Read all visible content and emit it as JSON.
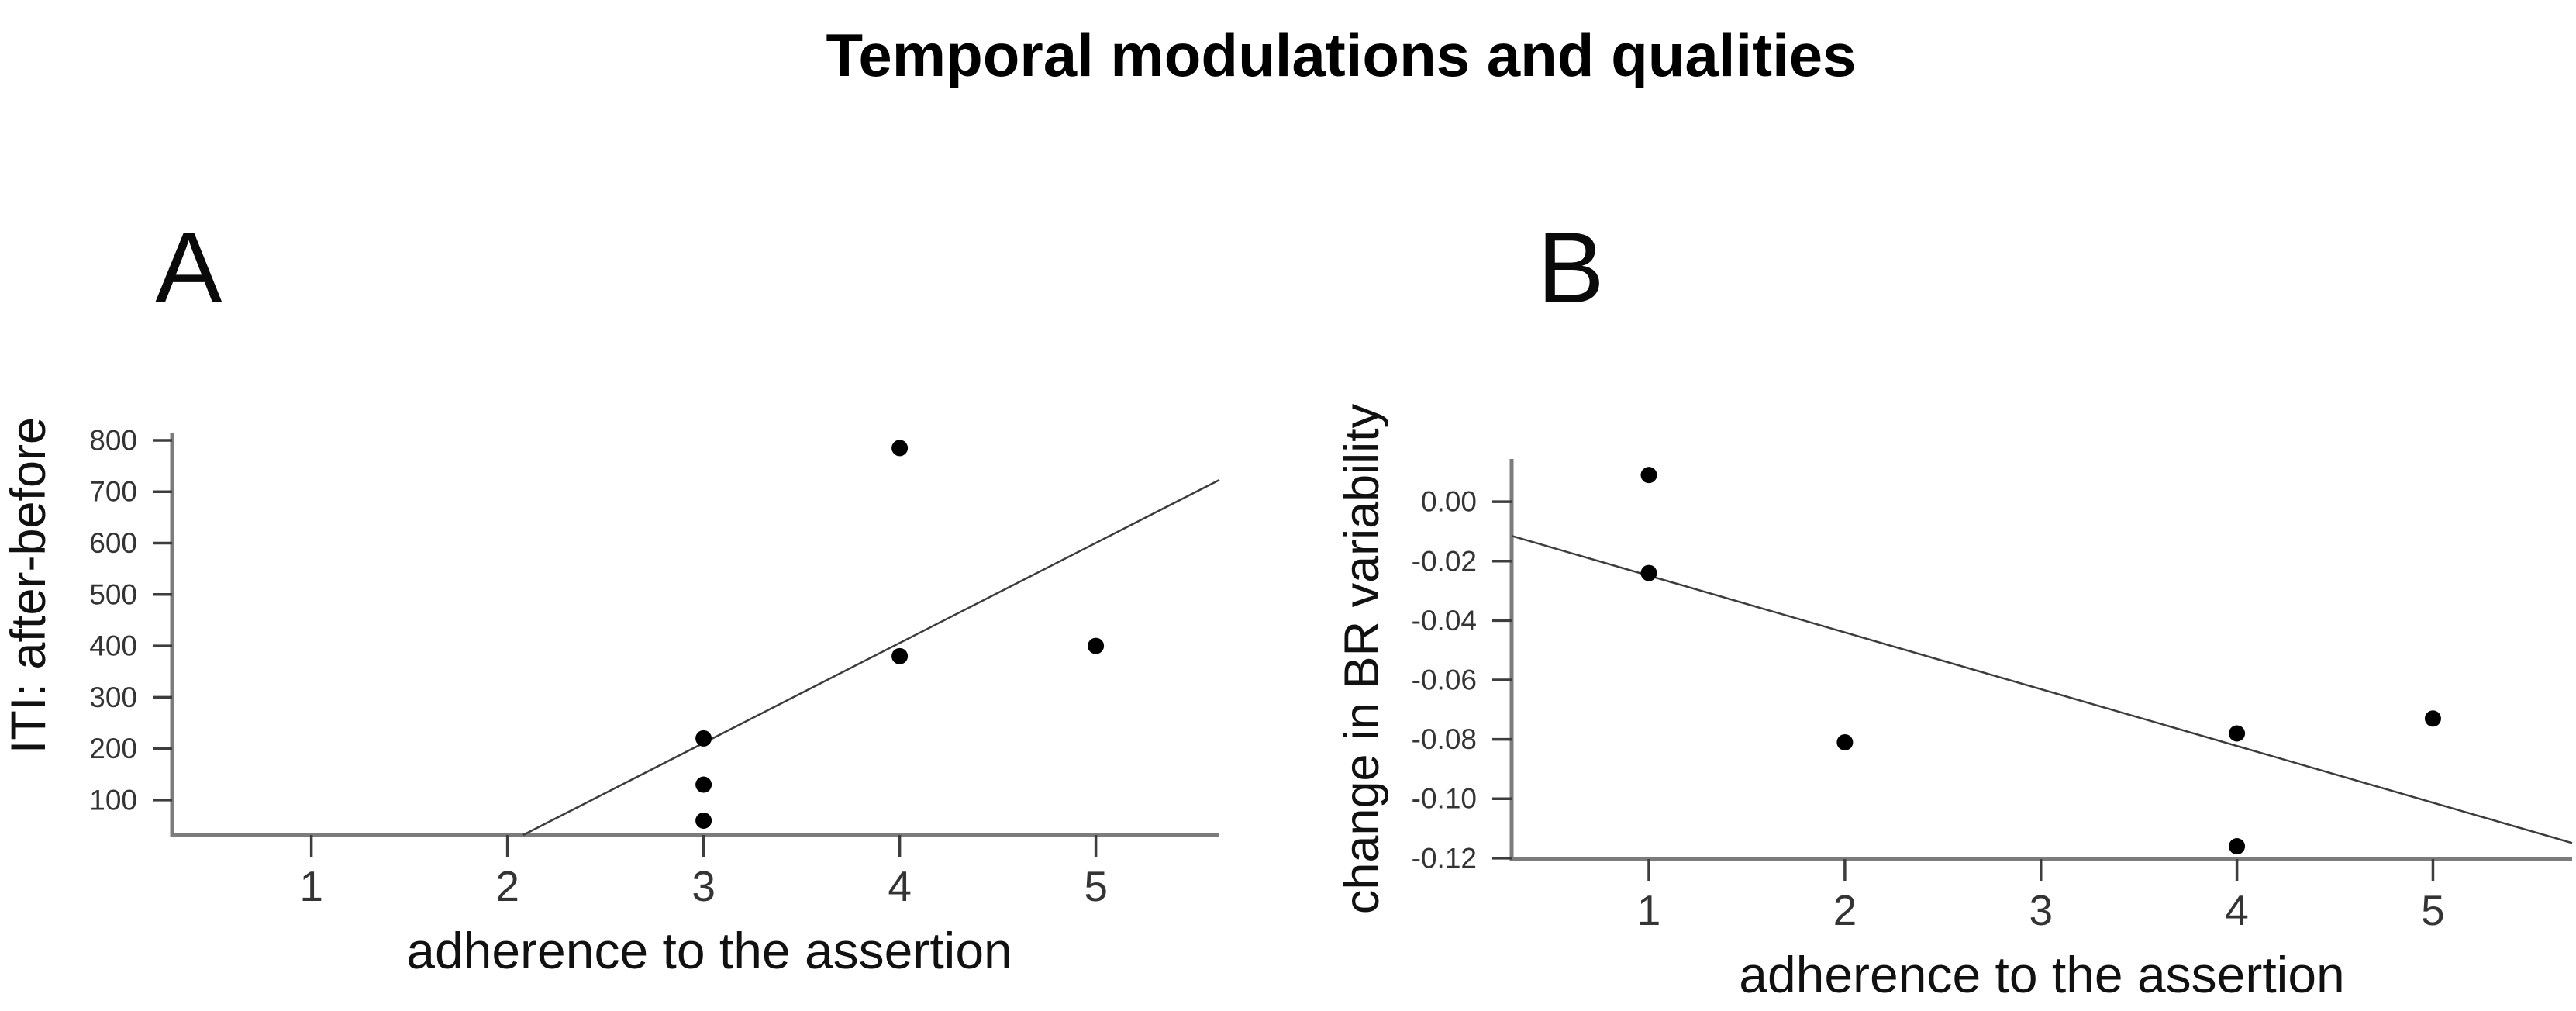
{
  "title": "Temporal modulations and qualities",
  "colors": {
    "background": "#ffffff",
    "axis_line": "#7c7c7c",
    "tick_mark": "#3d3d3d",
    "tick_label": "#343434",
    "point": "#000000",
    "regression_line": "#3c3c3c",
    "text": "#111111"
  },
  "chart_data": [
    {
      "type": "scatter",
      "panel_label": "A",
      "xlabel": "adherence to the assertion",
      "ylabel": "ITI: after-before",
      "xlim": [
        0.29,
        5.63
      ],
      "ylim": [
        32,
        815
      ],
      "x_tick_values": [
        1,
        2,
        3,
        4,
        5
      ],
      "x_tick_labels": [
        "1",
        "2",
        "3",
        "4",
        "5"
      ],
      "y_tick_values": [
        100,
        200,
        300,
        400,
        500,
        600,
        700,
        800
      ],
      "y_tick_labels": [
        "100",
        "200",
        "300",
        "400",
        "500",
        "600",
        "700",
        "800"
      ],
      "points": [
        {
          "x": 3,
          "y": 60
        },
        {
          "x": 3,
          "y": 130
        },
        {
          "x": 3,
          "y": 220
        },
        {
          "x": 4,
          "y": 380
        },
        {
          "x": 4,
          "y": 785
        },
        {
          "x": 5,
          "y": 400
        }
      ],
      "fit_line": {
        "x1": 2.08,
        "y1": 32,
        "x2": 5.63,
        "y2": 723
      },
      "grid": false,
      "legend": null
    },
    {
      "type": "scatter",
      "panel_label": "B",
      "xlabel": "adherence to the assertion",
      "ylabel": "change in BR variability",
      "xlim": [
        0.3,
        5.71
      ],
      "ylim": [
        -0.1203,
        0.0144
      ],
      "x_tick_values": [
        1,
        2,
        3,
        4,
        5
      ],
      "x_tick_labels": [
        "1",
        "2",
        "3",
        "4",
        "5"
      ],
      "y_tick_values": [
        0.0,
        -0.02,
        -0.04,
        -0.06,
        -0.08,
        -0.1,
        -0.12
      ],
      "y_tick_labels": [
        "0.00",
        "-0.02",
        "-0.04",
        "-0.06",
        "-0.08",
        "-0.10",
        "-0.12"
      ],
      "points": [
        {
          "x": 1,
          "y": 0.009
        },
        {
          "x": 1,
          "y": -0.024
        },
        {
          "x": 2,
          "y": -0.081
        },
        {
          "x": 4,
          "y": -0.078
        },
        {
          "x": 4,
          "y": -0.116
        },
        {
          "x": 5,
          "y": -0.073
        }
      ],
      "fit_line": {
        "x1": 0.3,
        "y1": -0.0115,
        "x2": 5.71,
        "y2": -0.1149
      },
      "grid": false,
      "legend": null
    }
  ]
}
